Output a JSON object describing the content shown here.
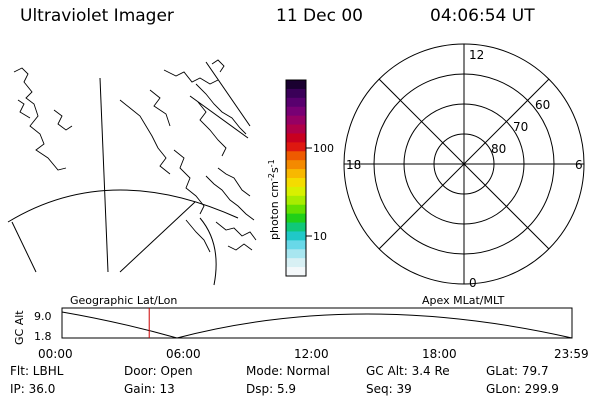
{
  "header": {
    "instrument": "Ultraviolet Imager",
    "date": "11 Dec 00",
    "time": "04:06:54 UT"
  },
  "colorbar": {
    "unit_text": "photon cm",
    "unit_sup1": "-2",
    "unit_s": "s",
    "unit_sup2": "-1",
    "ticks": [
      "100",
      "10"
    ],
    "colors": [
      "#1a0030",
      "#3a0058",
      "#58006e",
      "#780074",
      "#960064",
      "#b00048",
      "#c80020",
      "#de1810",
      "#ee5a00",
      "#f48a00",
      "#f8b800",
      "#f4dc00",
      "#d8f000",
      "#a8ec00",
      "#64e000",
      "#20d018",
      "#10c878",
      "#20c8c8",
      "#68d8e8",
      "#a8e6f0",
      "#d8f0f4",
      "#f4f8fa"
    ]
  },
  "polar_plot": {
    "mlt_labels": {
      "top": "12",
      "left": "18",
      "right": "6",
      "bottom": "0"
    },
    "lat_labels": [
      "60",
      "70",
      "80"
    ]
  },
  "altitude_strip": {
    "ylabel": "GC Alt",
    "ymax": "9.0",
    "ymin": "1.8",
    "left_caption": "Geographic Lat/Lon",
    "right_caption": "Apex MLat/MLT",
    "time_ticks": [
      "00:00",
      "06:00",
      "12:00",
      "18:00",
      "23:59"
    ],
    "current_time_fraction": 0.171,
    "marker_color": "#cc0000"
  },
  "info": {
    "flt": "Flt: LBHL",
    "ip": "IP: 36.0",
    "door": "Door: Open",
    "gain": "Gain: 13",
    "mode": "Mode: Normal",
    "dsp": "Dsp:    5.9",
    "gc_alt": "GC Alt: 3.4 Re",
    "seq": "Seq: 39",
    "glat": "GLat:  79.7",
    "glon": "GLon: 299.9"
  }
}
